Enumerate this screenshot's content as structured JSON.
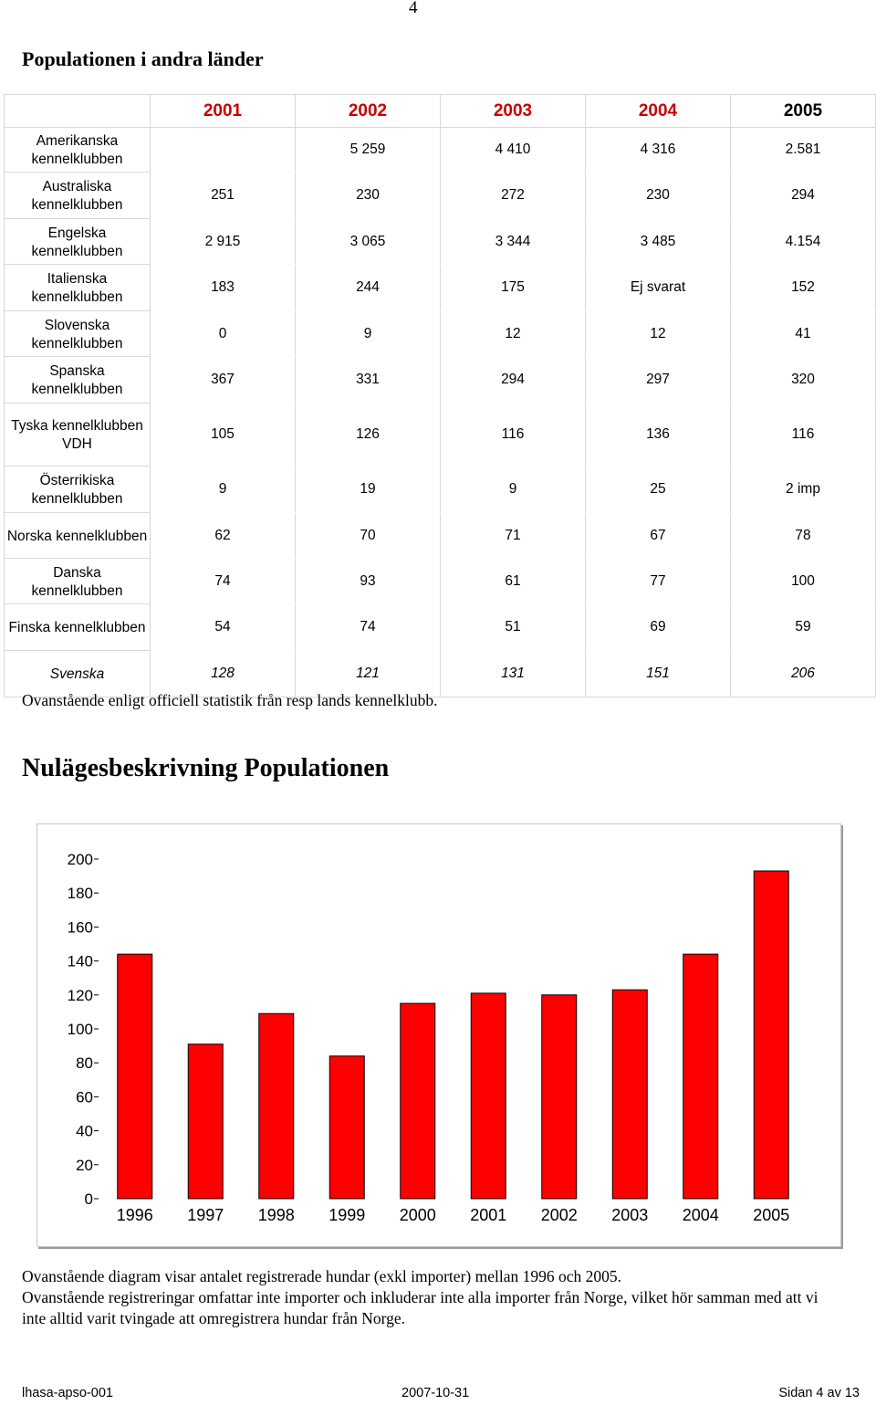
{
  "page_number": "4",
  "section1_title": "Populationen i andra länder",
  "table": {
    "columns": [
      "2001",
      "2002",
      "2003",
      "2004",
      "2005"
    ],
    "rows": [
      {
        "label": "Amerikanska kennelklubben",
        "values": [
          "",
          "5 259",
          "4 410",
          "4 316",
          "2.581"
        ]
      },
      {
        "label": "Australiska kennelklubben",
        "values": [
          "251",
          "230",
          "272",
          "230",
          "294"
        ]
      },
      {
        "label": "Engelska kennelklubben",
        "values": [
          "2 915",
          "3 065",
          "3 344",
          "3 485",
          "4.154"
        ]
      },
      {
        "label": "Italienska kennelklubben",
        "values": [
          "183",
          "244",
          "175",
          "Ej svarat",
          "152"
        ]
      },
      {
        "label": "Slovenska kennelklubben",
        "values": [
          "0",
          "9",
          "12",
          "12",
          "41"
        ]
      },
      {
        "label": "Spanska kennelklubben",
        "values": [
          "367",
          "331",
          "294",
          "297",
          "320"
        ]
      },
      {
        "label": "Tyska kennelklubben VDH",
        "values": [
          "105",
          "126",
          "116",
          "136",
          "116"
        ]
      },
      {
        "label": "Österrikiska kennelklubben",
        "values": [
          "9",
          "19",
          "9",
          "25",
          "2 imp"
        ]
      },
      {
        "label": "Norska kennelklubben",
        "values": [
          "62",
          "70",
          "71",
          "67",
          "78"
        ]
      },
      {
        "label": "Danska kennelklubben",
        "values": [
          "74",
          "93",
          "61",
          "77",
          "100"
        ]
      },
      {
        "label": "Finska kennelklubben",
        "values": [
          "54",
          "74",
          "51",
          "69",
          "59"
        ]
      },
      {
        "label": "Svenska",
        "values": [
          "128",
          "121",
          "131",
          "151",
          "206"
        ]
      }
    ]
  },
  "table_note": "Ovanstående enligt officiell statistik från resp lands kennelklubb.",
  "section2_title": "Nulägesbeskrivning Populationen",
  "chart_data": {
    "type": "bar",
    "categories": [
      "1996",
      "1997",
      "1998",
      "1999",
      "2000",
      "2001",
      "2002",
      "2003",
      "2004",
      "2005"
    ],
    "values": [
      144,
      91,
      109,
      84,
      115,
      121,
      120,
      123,
      144,
      193
    ],
    "ylim": [
      0,
      200
    ],
    "yticks": [
      0,
      20,
      40,
      60,
      80,
      100,
      120,
      140,
      160,
      180,
      200
    ],
    "bar_color": "#ff0000",
    "grid": false,
    "legend": "none"
  },
  "chart_desc_1": "Ovanstående diagram visar antalet registrerade hundar (exkl importer) mellan 1996 och 2005.",
  "chart_desc_2": "Ovanstående registreringar omfattar inte importer och inkluderar inte alla importer från Norge, vilket hör samman med att vi inte alltid varit tvingade att omregistrera hundar från Norge.",
  "footer": {
    "left": "lhasa-apso-001",
    "center": "2007-10-31",
    "right": "Sidan 4 av 13"
  }
}
